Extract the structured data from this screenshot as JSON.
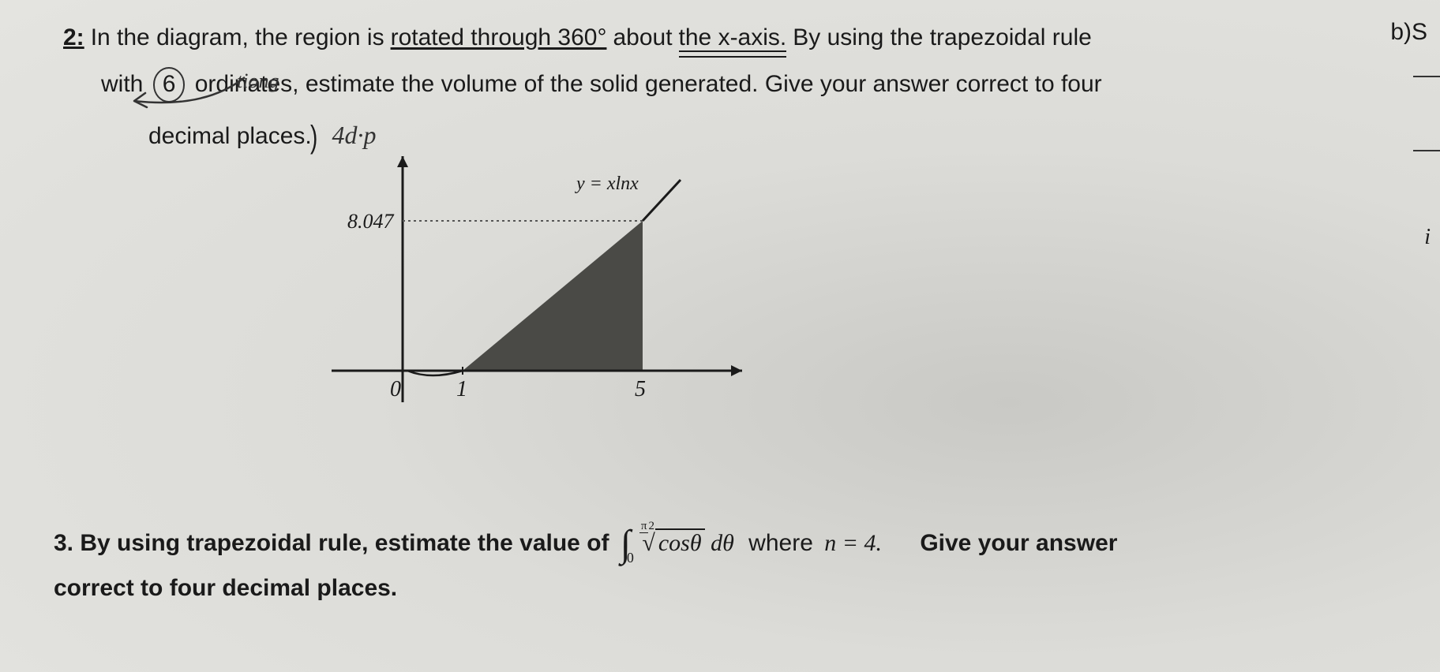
{
  "q2": {
    "number": "2:",
    "line1_a": "In the diagram, the region is",
    "rotated": "rotated through 360°",
    "line1_b": "about",
    "xaxis": "the x-axis.",
    "line1_c": "By using the trapezoidal rule",
    "line2_a": "with",
    "six": "6",
    "line2_b": "ordinates, estimate the volume of the solid generated.  Give your answer correct to four",
    "line3_a": "decimal places.",
    "annotation_tiong": "tiong",
    "annotation_4dp": "4d·p",
    "chart": {
      "curve_label": "y = xlnx",
      "y_tick": "8.047",
      "x_ticks": [
        "0",
        "1",
        "5"
      ],
      "axis_color": "#1a1a1a",
      "fill_color": "#4a4a46",
      "dotted_color": "#555555",
      "background": "transparent",
      "ox": 110,
      "oy": 290,
      "x_unit": 76,
      "y_8047": 100,
      "shape_points": "186,290 414,290 414,100",
      "arrow_tip_x": 540,
      "axis_top_y": 18
    }
  },
  "right": {
    "bs": "b)S",
    "i": "i"
  },
  "q3": {
    "prefix": "3. By using trapezoidal rule, estimate the value of",
    "upper_num": "π",
    "upper_den": "2",
    "lower": "0",
    "radicand": "cosθ",
    "dtheta": " dθ",
    "where": "where",
    "n_eq": "n = 4.",
    "give": "Give your answer",
    "line2": "correct to four decimal places."
  }
}
